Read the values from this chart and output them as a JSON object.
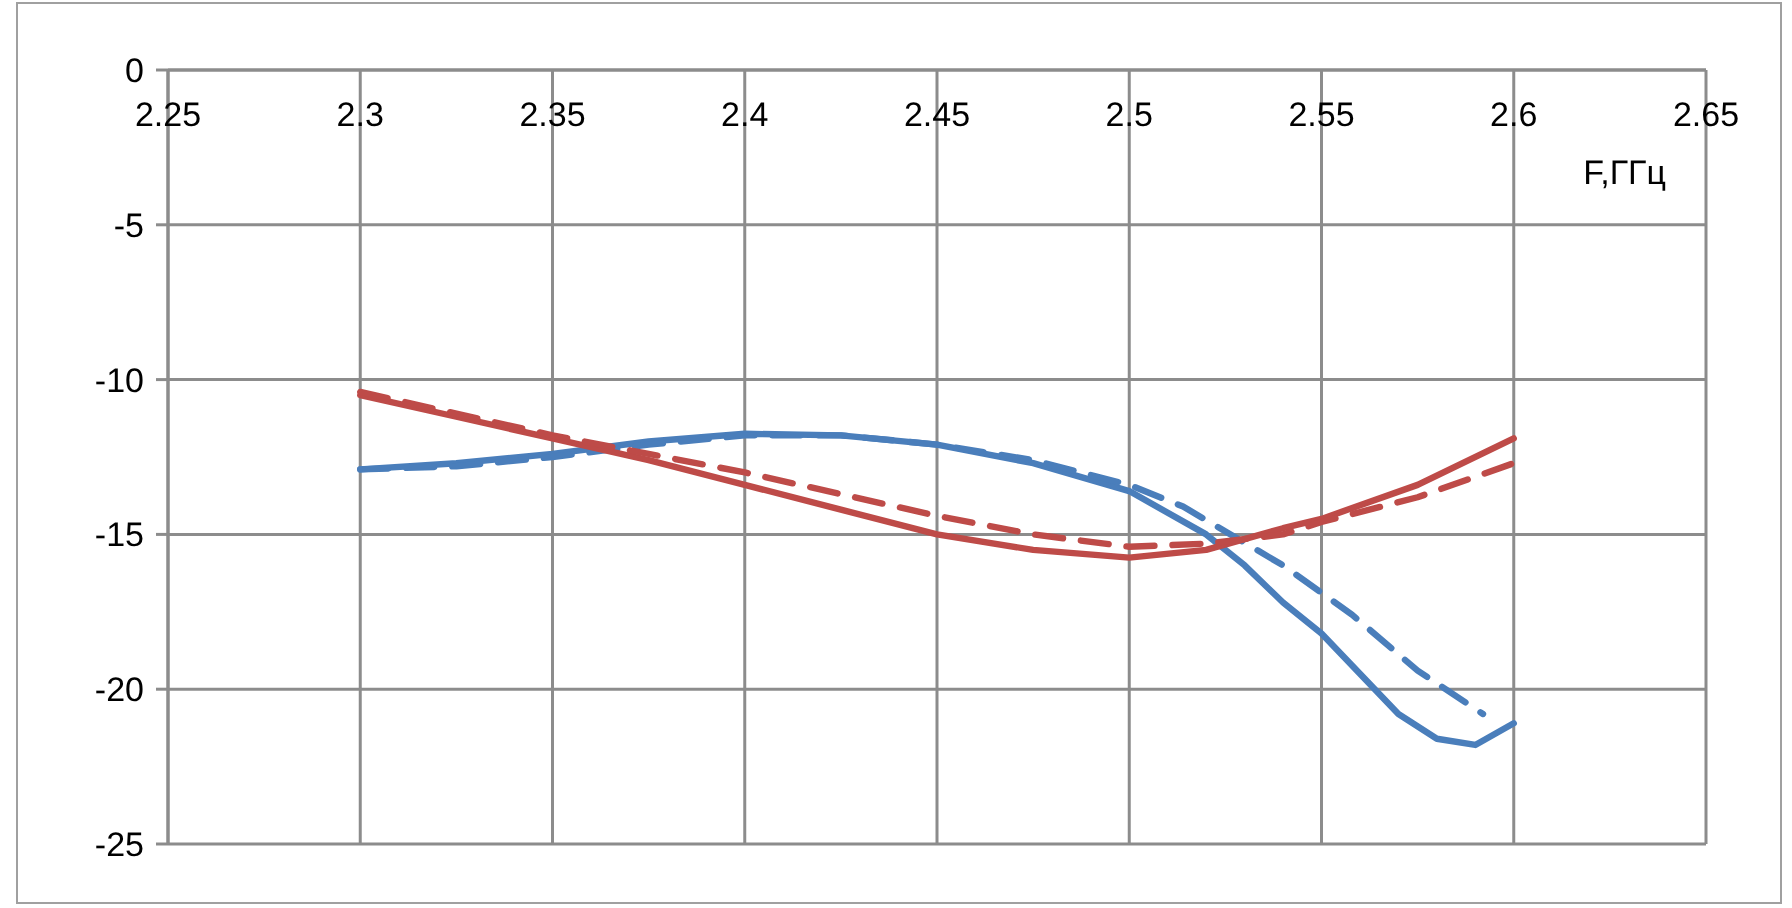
{
  "chart_data": {
    "type": "line",
    "xlabel": "F,ГГц",
    "xlim": [
      2.25,
      2.65
    ],
    "xticks": [
      2.25,
      2.3,
      2.35,
      2.4,
      2.45,
      2.5,
      2.55,
      2.6,
      2.65
    ],
    "ylim": [
      -25,
      0
    ],
    "yticks": [
      -25,
      -20,
      -15,
      -10,
      -5,
      0
    ],
    "grid": true,
    "series": [
      {
        "color": "#4a7ebb",
        "line_style": "solid",
        "x": [
          2.3,
          2.325,
          2.35,
          2.375,
          2.4,
          2.425,
          2.45,
          2.475,
          2.5,
          2.52,
          2.53,
          2.54,
          2.55,
          2.57,
          2.58,
          2.59,
          2.6
        ],
        "values": [
          -12.9,
          -12.7,
          -12.4,
          -12.0,
          -11.75,
          -11.8,
          -12.1,
          -12.7,
          -13.6,
          -15.0,
          -16.0,
          -17.2,
          -18.2,
          -20.8,
          -21.6,
          -21.8,
          -21.1
        ]
      },
      {
        "color": "#4a7ebb",
        "line_style": "dashed",
        "x": [
          2.3,
          2.325,
          2.35,
          2.375,
          2.4,
          2.425,
          2.45,
          2.475,
          2.5,
          2.514,
          2.54,
          2.558,
          2.575,
          2.592
        ],
        "values": [
          -12.9,
          -12.8,
          -12.5,
          -12.1,
          -11.8,
          -11.8,
          -12.1,
          -12.6,
          -13.4,
          -14.1,
          -16.0,
          -17.6,
          -19.4,
          -20.8
        ]
      },
      {
        "color": "#be4b48",
        "line_style": "solid",
        "x": [
          2.3,
          2.325,
          2.35,
          2.375,
          2.4,
          2.425,
          2.45,
          2.475,
          2.5,
          2.52,
          2.54,
          2.55,
          2.575,
          2.6
        ],
        "values": [
          -10.5,
          -11.2,
          -11.9,
          -12.6,
          -13.4,
          -14.2,
          -15.0,
          -15.5,
          -15.75,
          -15.5,
          -14.8,
          -14.5,
          -13.4,
          -11.9
        ]
      },
      {
        "color": "#be4b48",
        "line_style": "dashed",
        "x": [
          2.3,
          2.325,
          2.35,
          2.375,
          2.4,
          2.425,
          2.45,
          2.475,
          2.5,
          2.52,
          2.54,
          2.55,
          2.575,
          2.6
        ],
        "values": [
          -10.4,
          -11.1,
          -11.8,
          -12.4,
          -13.0,
          -13.7,
          -14.4,
          -15.0,
          -15.4,
          -15.3,
          -15.0,
          -14.6,
          -13.8,
          -12.7
        ]
      }
    ]
  }
}
